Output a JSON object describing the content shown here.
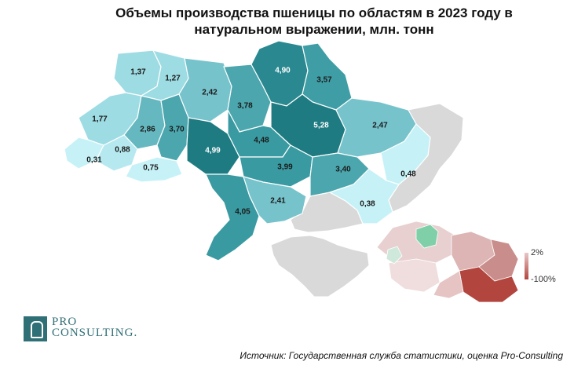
{
  "title": {
    "line1": "Объемы производства пшеницы по областям в 2023 году в",
    "line2": "натуральном выражении, млн. тонн"
  },
  "regions": [
    {
      "id": "volyn",
      "value": "1,37",
      "color": "#9edce3"
    },
    {
      "id": "rivne",
      "value": "1,27",
      "color": "#9edce3"
    },
    {
      "id": "zhytomyr",
      "value": "2,42",
      "color": "#77c3cc"
    },
    {
      "id": "kyiv",
      "value": "3,78",
      "color": "#4ba6ae"
    },
    {
      "id": "chernihiv",
      "value": "4,90",
      "color": "#2a8990"
    },
    {
      "id": "sumy",
      "value": "3,57",
      "color": "#3f9ea5"
    },
    {
      "id": "poltava",
      "value": "5,28",
      "color": "#1f7b82"
    },
    {
      "id": "kharkiv",
      "value": "2,47",
      "color": "#77c3cc"
    },
    {
      "id": "lviv",
      "value": "1,77",
      "color": "#9edce3"
    },
    {
      "id": "ternopil",
      "value": "2,86",
      "color": "#66b8c0"
    },
    {
      "id": "khmelnytskyi",
      "value": "3,70",
      "color": "#4ba6ae"
    },
    {
      "id": "vinnytsia",
      "value": "4,99",
      "color": "#1f7b82"
    },
    {
      "id": "cherkasy",
      "value": "4,48",
      "color": "#3a9aa1"
    },
    {
      "id": "kirovohrad",
      "value": "3,99",
      "color": "#3a9aa1"
    },
    {
      "id": "dnipro",
      "value": "3,40",
      "color": "#4ba6ae"
    },
    {
      "id": "zakarpattia",
      "value": "0,31",
      "color": "#c6f2f7"
    },
    {
      "id": "ivano-frankivsk",
      "value": "0,88",
      "color": "#b6e9ef"
    },
    {
      "id": "chernivtsi",
      "value": "0,75",
      "color": "#c6f2f7"
    },
    {
      "id": "odesa",
      "value": "4,05",
      "color": "#3a9aa1"
    },
    {
      "id": "mykolaiv",
      "value": "2,41",
      "color": "#77c3cc"
    },
    {
      "id": "luhansk",
      "value": "0,48",
      "color": "#c6f2f7"
    },
    {
      "id": "zaporizhzhia",
      "value": "0,38",
      "color": "#c6f2f7"
    }
  ],
  "legend": {
    "max_label": "2%",
    "min_label": "-100%",
    "top_color": "#e9c8c7",
    "bottom_color": "#b3453f"
  },
  "source": "Источник: Государственная служба статистики, оценка Pro-Consulting",
  "logo": {
    "pro": "PRO",
    "consulting": "CONSULTING."
  }
}
